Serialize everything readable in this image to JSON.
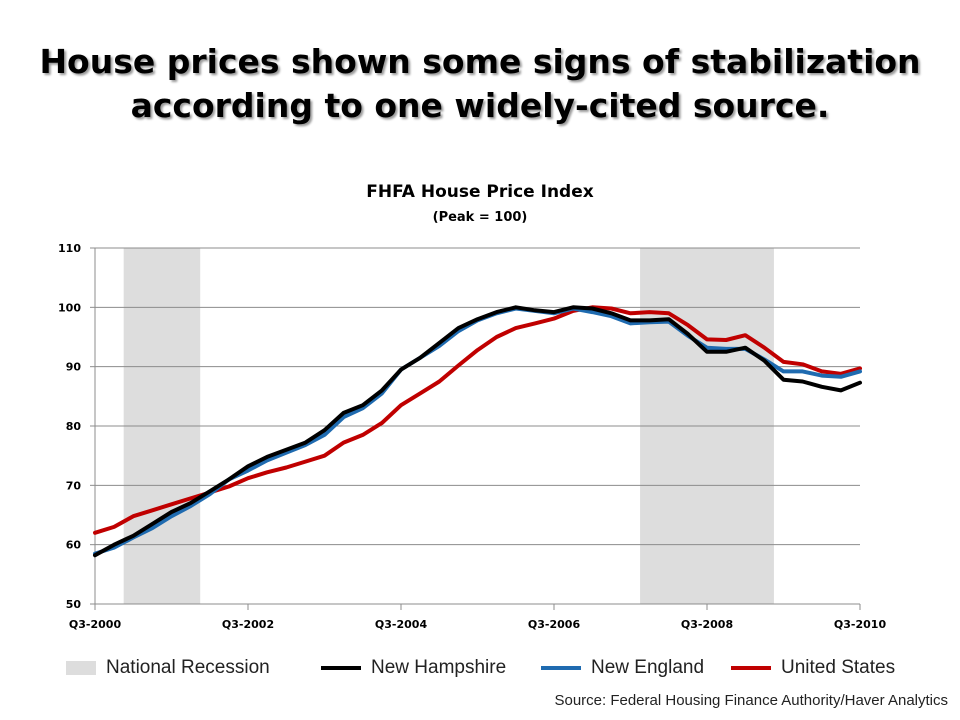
{
  "slide": {
    "title_line1": "House prices shown some signs of stabilization",
    "title_line2": "according to one widely-cited source."
  },
  "source": "Source: Federal Housing Finance Authority/Haver Analytics",
  "chart_data": {
    "type": "line",
    "title": "FHFA House Price Index",
    "subtitle": "(Peak = 100)",
    "xlabel": "",
    "ylabel": "",
    "ylim": [
      50,
      110
    ],
    "yticks": [
      50,
      60,
      70,
      80,
      90,
      100,
      110
    ],
    "x_tick_labels": [
      "Q3-2000",
      "Q3-2002",
      "Q3-2004",
      "Q3-2006",
      "Q3-2008",
      "Q3-2010"
    ],
    "x": [
      "Q3-2000",
      "Q4-2000",
      "Q1-2001",
      "Q2-2001",
      "Q3-2001",
      "Q4-2001",
      "Q1-2002",
      "Q2-2002",
      "Q3-2002",
      "Q4-2002",
      "Q1-2003",
      "Q2-2003",
      "Q3-2003",
      "Q4-2003",
      "Q1-2004",
      "Q2-2004",
      "Q3-2004",
      "Q4-2004",
      "Q1-2005",
      "Q2-2005",
      "Q3-2005",
      "Q4-2005",
      "Q1-2006",
      "Q2-2006",
      "Q3-2006",
      "Q4-2006",
      "Q1-2007",
      "Q2-2007",
      "Q3-2007",
      "Q4-2007",
      "Q1-2008",
      "Q2-2008",
      "Q3-2008",
      "Q4-2008",
      "Q1-2009",
      "Q2-2009",
      "Q3-2009",
      "Q4-2009",
      "Q1-2010",
      "Q2-2010",
      "Q3-2010"
    ],
    "grid": "horizontal",
    "legend_position": "bottom",
    "recessions": [
      {
        "name": "National Recession",
        "start": "Q1-2001",
        "end": "Q4-2001"
      },
      {
        "name": "National Recession",
        "start": "Q4-2007",
        "end": "Q2-2009"
      }
    ],
    "series": [
      {
        "name": "National Recession",
        "kind": "band",
        "color": "#dddddd"
      },
      {
        "name": "New Hampshire",
        "kind": "line",
        "color": "#000000",
        "values": [
          58.2,
          60.0,
          61.5,
          63.5,
          65.5,
          67.0,
          69.0,
          71.0,
          73.2,
          74.8,
          76.0,
          77.2,
          79.3,
          82.2,
          83.5,
          86.0,
          89.5,
          91.5,
          94.0,
          96.5,
          98.0,
          99.2,
          100.0,
          99.5,
          99.2,
          100.0,
          99.8,
          99.0,
          97.8,
          97.8,
          98.0,
          95.5,
          92.5,
          92.5,
          93.2,
          91.0,
          87.8,
          87.5,
          86.6,
          86.0,
          87.3
        ]
      },
      {
        "name": "New England",
        "kind": "line",
        "color": "#1f6bb0",
        "values": [
          58.5,
          59.5,
          61.2,
          62.8,
          64.8,
          66.5,
          68.5,
          71.0,
          72.5,
          74.2,
          75.5,
          76.8,
          78.5,
          81.5,
          83.0,
          85.5,
          89.5,
          91.5,
          93.5,
          96.0,
          97.8,
          99.0,
          99.8,
          99.4,
          99.0,
          99.8,
          99.2,
          98.5,
          97.3,
          97.5,
          97.6,
          95.2,
          93.2,
          93.0,
          93.0,
          91.2,
          89.2,
          89.2,
          88.5,
          88.3,
          89.2
        ]
      },
      {
        "name": "United States",
        "kind": "line",
        "color": "#c00000",
        "values": [
          62.0,
          63.0,
          64.8,
          65.8,
          66.8,
          67.8,
          68.8,
          69.8,
          71.2,
          72.2,
          73.0,
          74.0,
          75.0,
          77.2,
          78.5,
          80.5,
          83.5,
          85.5,
          87.5,
          90.2,
          92.8,
          95.0,
          96.5,
          97.3,
          98.1,
          99.4,
          100.0,
          99.8,
          99.0,
          99.2,
          99.0,
          97.0,
          94.6,
          94.5,
          95.3,
          93.2,
          90.8,
          90.4,
          89.2,
          88.8,
          89.7
        ]
      }
    ]
  }
}
